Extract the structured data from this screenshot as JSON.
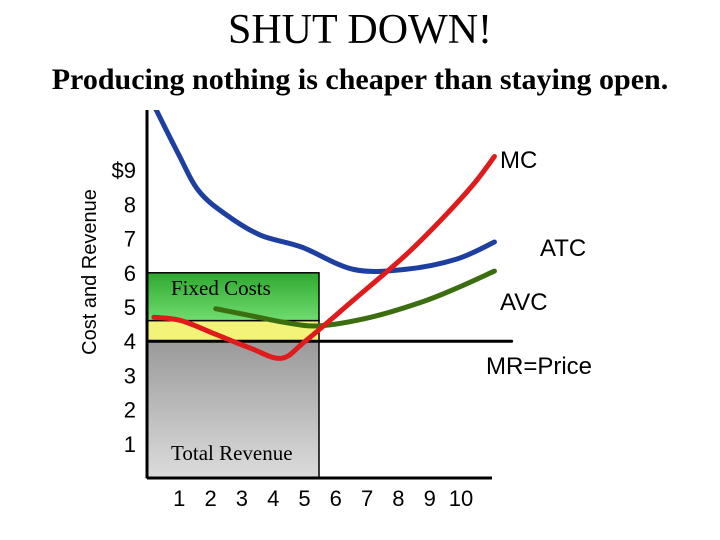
{
  "title": "SHUT DOWN!",
  "subtitle": "Producing nothing is cheaper than staying open.",
  "chart_data": {
    "type": "line",
    "ylabel": "Cost and Revenue",
    "xlabel": "",
    "x_ticks": [
      "1",
      "2",
      "3",
      "4",
      "5",
      "6",
      "7",
      "8",
      "9",
      "10"
    ],
    "y_ticks": [
      "1",
      "2",
      "3",
      "4",
      "5",
      "6",
      "7",
      "8",
      "$9"
    ],
    "xlim": [
      0,
      10.6
    ],
    "ylim": [
      0,
      9.5
    ],
    "series": [
      {
        "name": "MC",
        "color": "#e01b1b",
        "points": [
          [
            0.2,
            4.7
          ],
          [
            1.0,
            4.6
          ],
          [
            2.0,
            4.2
          ],
          [
            3.0,
            3.8
          ],
          [
            3.9,
            3.5
          ],
          [
            4.6,
            4.0
          ],
          [
            6.0,
            5.2
          ],
          [
            7.5,
            6.5
          ],
          [
            8.6,
            7.6
          ],
          [
            9.5,
            8.6
          ],
          [
            10.1,
            9.4
          ]
        ]
      },
      {
        "name": "ATC",
        "color": "#1d3fa0",
        "points": [
          [
            0.2,
            10.9
          ],
          [
            0.9,
            9.5
          ],
          [
            1.5,
            8.4
          ],
          [
            2.3,
            7.7
          ],
          [
            3.3,
            7.1
          ],
          [
            4.5,
            6.75
          ],
          [
            6.0,
            6.1
          ],
          [
            7.5,
            6.1
          ],
          [
            9.0,
            6.4
          ],
          [
            10.1,
            6.9
          ]
        ]
      },
      {
        "name": "AVC",
        "color": "#3a6e0f",
        "points": [
          [
            2.0,
            4.95
          ],
          [
            3.0,
            4.75
          ],
          [
            4.0,
            4.55
          ],
          [
            5.0,
            4.45
          ],
          [
            6.5,
            4.7
          ],
          [
            8.0,
            5.15
          ],
          [
            9.0,
            5.55
          ],
          [
            10.1,
            6.05
          ]
        ]
      },
      {
        "name": "MR=Price",
        "color": "#000000",
        "points": [
          [
            0.0,
            4.0
          ],
          [
            10.6,
            4.0
          ]
        ]
      }
    ],
    "regions": [
      {
        "label": "Fixed Costs",
        "color": "#3fbf3f",
        "x": [
          0,
          5
        ],
        "y": [
          4.6,
          6.0
        ]
      },
      {
        "label": "",
        "color": "#f3f37a",
        "x": [
          0,
          5
        ],
        "y": [
          4.0,
          4.6
        ]
      },
      {
        "label": "Total Revenue",
        "color": "#b4b4b4",
        "x": [
          0,
          5
        ],
        "y": [
          0,
          4.0
        ]
      }
    ],
    "grid": false
  }
}
